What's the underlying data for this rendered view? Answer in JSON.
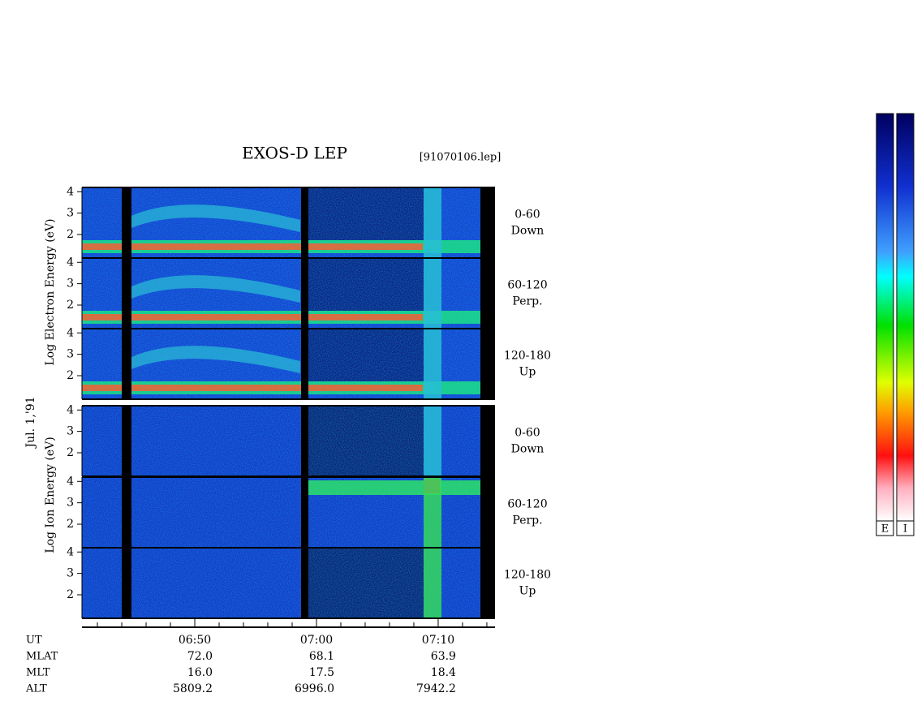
{
  "chart_data": {
    "type": "spectrogram",
    "title": "EXOS-D LEP",
    "file": "[91070106.lep]",
    "date": "Jul. 1,'91",
    "xlim": [
      40.73,
      74.67
    ],
    "xticks": [
      {
        "value": 50,
        "label": "06:50"
      },
      {
        "value": 60,
        "label": "07:00"
      },
      {
        "value": 70,
        "label": "07:10"
      }
    ],
    "minor_xticks": [
      42,
      44,
      46,
      48,
      52,
      54,
      56,
      58,
      62,
      64,
      66,
      68,
      72,
      74
    ],
    "ylim": [
      0.9,
      4.2
    ],
    "yticks": [
      2,
      3,
      4
    ],
    "groups": [
      {
        "ylabel": "Log Electron Energy (eV)",
        "panels": [
          {
            "range": "0-60",
            "direction": "Down"
          },
          {
            "range": "60-120",
            "direction": "Perp."
          },
          {
            "range": "120-180",
            "direction": "Up"
          }
        ]
      },
      {
        "ylabel": "Log Ion Energy (eV)",
        "panels": [
          {
            "range": "0-60",
            "direction": "Down"
          },
          {
            "range": "60-120",
            "direction": "Perp."
          },
          {
            "range": "120-180",
            "direction": "Up"
          }
        ]
      }
    ],
    "ephemeris": [
      {
        "name": "UT"
      },
      {
        "name": "MLAT",
        "values": [
          "72.0",
          "68.1",
          "63.9"
        ]
      },
      {
        "name": "MLT",
        "values": [
          "16.0",
          "17.5",
          "18.4"
        ]
      },
      {
        "name": "ALT",
        "values": [
          "5809.2",
          "6996.0",
          "7942.2"
        ]
      }
    ],
    "colorbars": [
      "E",
      "I"
    ]
  }
}
